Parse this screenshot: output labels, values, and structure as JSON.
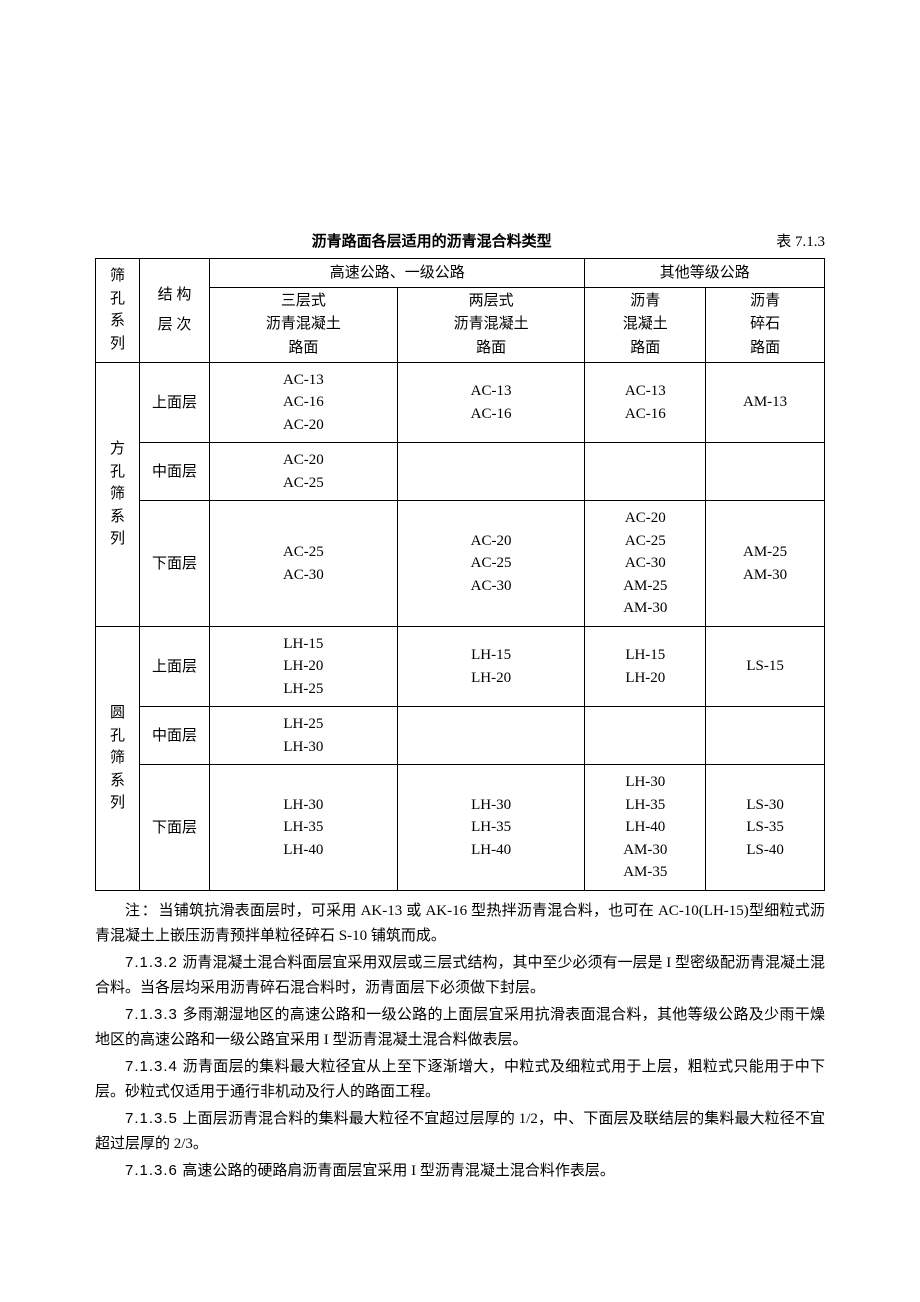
{
  "title": "沥青路面各层适用的沥青混合料类型",
  "table_no": "表 7.1.3",
  "headers": {
    "sieve": "筛孔系列",
    "struct_layer_top": "结 构",
    "struct_layer_bottom": "层 次",
    "high_grade": "高速公路、一级公路",
    "other_grade": "其他等级公路",
    "col_a": {
      "l1": "三层式",
      "l2": "沥青混凝土",
      "l3": "路面"
    },
    "col_b": {
      "l1": "两层式",
      "l2": "沥青混凝土",
      "l3": "路面"
    },
    "col_c": {
      "l1": "沥青",
      "l2": "混凝土",
      "l3": "路面"
    },
    "col_d": {
      "l1": "沥青",
      "l2": "碎石",
      "l3": "路面"
    }
  },
  "groups": [
    {
      "sieve": "方孔筛系列",
      "rows": [
        {
          "layer": "上面层",
          "a": [
            "AC-13",
            "AC-16",
            "AC-20"
          ],
          "b": [
            "AC-13",
            "AC-16"
          ],
          "c": [
            "AC-13",
            "AC-16"
          ],
          "d": [
            "AM-13"
          ]
        },
        {
          "layer": "中面层",
          "a": [
            "AC-20",
            "AC-25"
          ],
          "b": [],
          "c": [],
          "d": []
        },
        {
          "layer": "下面层",
          "a": [
            "AC-25",
            "AC-30"
          ],
          "b": [
            "AC-20",
            "AC-25",
            "AC-30"
          ],
          "c": [
            "AC-20",
            "AC-25",
            "AC-30",
            "AM-25",
            "AM-30"
          ],
          "d": [
            "AM-25",
            "AM-30"
          ]
        }
      ]
    },
    {
      "sieve": "圆孔筛系列",
      "rows": [
        {
          "layer": "上面层",
          "a": [
            "LH-15",
            "LH-20",
            "LH-25"
          ],
          "b": [
            "LH-15",
            "LH-20"
          ],
          "c": [
            "LH-15",
            "LH-20"
          ],
          "d": [
            "LS-15"
          ]
        },
        {
          "layer": "中面层",
          "a": [
            "LH-25",
            "LH-30"
          ],
          "b": [],
          "c": [],
          "d": []
        },
        {
          "layer": "下面层",
          "a": [
            "LH-30",
            "LH-35",
            "LH-40"
          ],
          "b": [
            "LH-30",
            "LH-35",
            "LH-40"
          ],
          "c": [
            "LH-30",
            "LH-35",
            "LH-40",
            "AM-30",
            "AM-35"
          ],
          "d": [
            "LS-30",
            "LS-35",
            "LS-40"
          ]
        }
      ]
    }
  ],
  "note_label": "注：",
  "note": "当铺筑抗滑表面层时，可采用 AK-13 或 AK-16 型热拌沥青混合料，也可在 AC-10(LH-15)型细粒式沥青混凝土上嵌压沥青预拌单粒径碎石 S-10 铺筑而成。",
  "paragraphs": [
    {
      "no": "7.1.3.2",
      "text": "沥青混凝土混合料面层宜采用双层或三层式结构，其中至少必须有一层是 I 型密级配沥青混凝土混合料。当各层均采用沥青碎石混合料时，沥青面层下必须做下封层。"
    },
    {
      "no": "7.1.3.3",
      "text": "多雨潮湿地区的高速公路和一级公路的上面层宜采用抗滑表面混合料，其他等级公路及少雨干燥地区的高速公路和一级公路宜采用 I 型沥青混凝土混合料做表层。"
    },
    {
      "no": "7.1.3.4",
      "text": "沥青面层的集料最大粒径宜从上至下逐渐增大，中粒式及细粒式用于上层，粗粒式只能用于中下层。砂粒式仅适用于通行非机动及行人的路面工程。"
    },
    {
      "no": "7.1.3.5",
      "text": "上面层沥青混合料的集料最大粒径不宜超过层厚的 1/2，中、下面层及联结层的集料最大粒径不宜超过层厚的 2/3。"
    },
    {
      "no": "7.1.3.6",
      "text": "高速公路的硬路肩沥青面层宜采用 I 型沥青混凝土混合料作表层。"
    }
  ]
}
